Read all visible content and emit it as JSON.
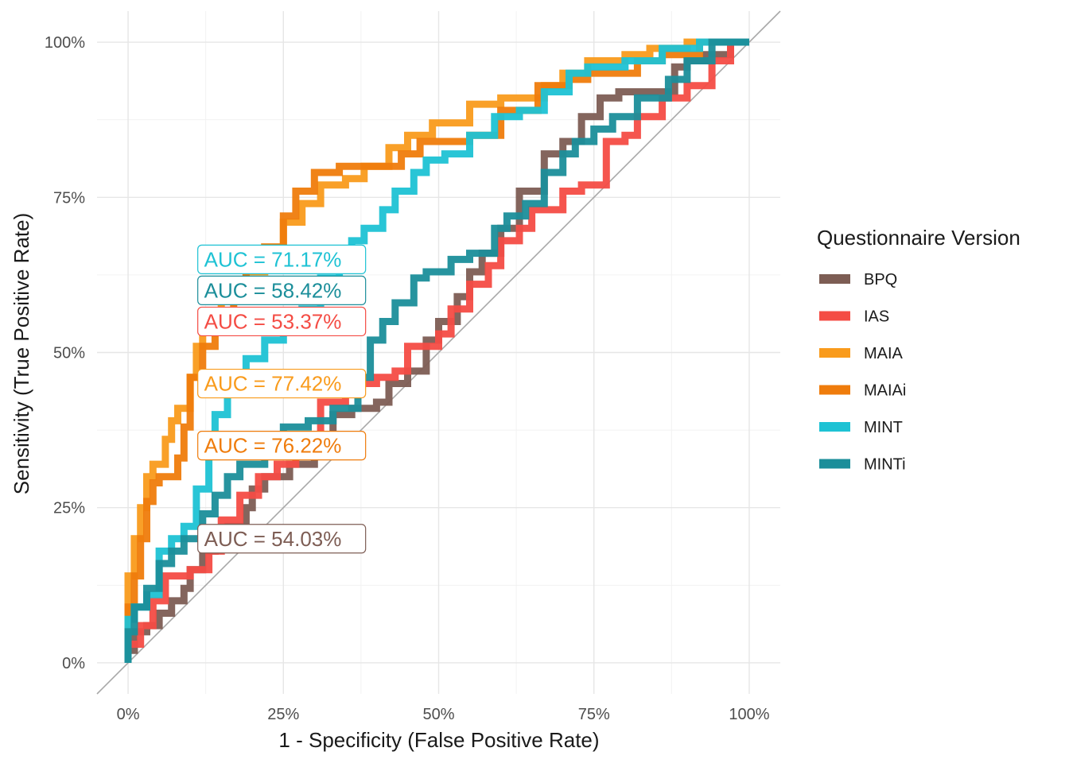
{
  "chart_data": {
    "type": "line",
    "title": "",
    "xlabel": "1 - Specificity (False Positive Rate)",
    "ylabel": "Sensitivity (True Positive Rate)",
    "xlim": [
      -0.05,
      1.05
    ],
    "ylim": [
      -0.05,
      1.05
    ],
    "x_ticks": [
      0,
      0.25,
      0.5,
      0.75,
      1
    ],
    "x_tick_labels": [
      "0%",
      "25%",
      "50%",
      "75%",
      "100%"
    ],
    "y_ticks": [
      0,
      0.25,
      0.5,
      0.75,
      1
    ],
    "y_tick_labels": [
      "0%",
      "25%",
      "50%",
      "75%",
      "100%"
    ],
    "grid": true,
    "reference_line": "diagonal",
    "legend": {
      "title": "Questionnaire Version",
      "position": "right"
    },
    "series": [
      {
        "name": "BPQ",
        "color": "#7d5d54",
        "auc_label": "AUC = 54.03%",
        "label_anchor": [
          0.125,
          0.2
        ],
        "points": [
          [
            0,
            0
          ],
          [
            0.01,
            0.02
          ],
          [
            0.03,
            0.05
          ],
          [
            0.05,
            0.06
          ],
          [
            0.07,
            0.08
          ],
          [
            0.09,
            0.1
          ],
          [
            0.1,
            0.12
          ],
          [
            0.12,
            0.15
          ],
          [
            0.14,
            0.18
          ],
          [
            0.16,
            0.2
          ],
          [
            0.19,
            0.22
          ],
          [
            0.2,
            0.25
          ],
          [
            0.22,
            0.28
          ],
          [
            0.26,
            0.3
          ],
          [
            0.3,
            0.32
          ],
          [
            0.33,
            0.36
          ],
          [
            0.36,
            0.4
          ],
          [
            0.4,
            0.41
          ],
          [
            0.42,
            0.42
          ],
          [
            0.45,
            0.45
          ],
          [
            0.48,
            0.47
          ],
          [
            0.5,
            0.52
          ],
          [
            0.53,
            0.55
          ],
          [
            0.55,
            0.59
          ],
          [
            0.57,
            0.63
          ],
          [
            0.6,
            0.66
          ],
          [
            0.63,
            0.7
          ],
          [
            0.67,
            0.76
          ],
          [
            0.7,
            0.82
          ],
          [
            0.71,
            0.84
          ],
          [
            0.73,
            0.84
          ],
          [
            0.76,
            0.88
          ],
          [
            0.79,
            0.91
          ],
          [
            0.88,
            0.92
          ],
          [
            0.9,
            0.96
          ],
          [
            0.93,
            0.97
          ],
          [
            0.97,
            0.98
          ],
          [
            1,
            1
          ]
        ]
      },
      {
        "name": "IAS",
        "color": "#f44c44",
        "auc_label": "AUC = 53.37%",
        "label_anchor": [
          0.125,
          0.55
        ],
        "points": [
          [
            0,
            0
          ],
          [
            0.02,
            0.03
          ],
          [
            0.04,
            0.06
          ],
          [
            0.06,
            0.1
          ],
          [
            0.1,
            0.14
          ],
          [
            0.13,
            0.15
          ],
          [
            0.15,
            0.18
          ],
          [
            0.18,
            0.23
          ],
          [
            0.21,
            0.27
          ],
          [
            0.24,
            0.3
          ],
          [
            0.27,
            0.32
          ],
          [
            0.31,
            0.36
          ],
          [
            0.35,
            0.42
          ],
          [
            0.4,
            0.45
          ],
          [
            0.43,
            0.46
          ],
          [
            0.45,
            0.47
          ],
          [
            0.5,
            0.51
          ],
          [
            0.52,
            0.53
          ],
          [
            0.55,
            0.57
          ],
          [
            0.58,
            0.61
          ],
          [
            0.6,
            0.64
          ],
          [
            0.63,
            0.68
          ],
          [
            0.65,
            0.7
          ],
          [
            0.67,
            0.73
          ],
          [
            0.7,
            0.73
          ],
          [
            0.73,
            0.76
          ],
          [
            0.77,
            0.77
          ],
          [
            0.8,
            0.84
          ],
          [
            0.82,
            0.85
          ],
          [
            0.86,
            0.88
          ],
          [
            0.9,
            0.91
          ],
          [
            0.94,
            0.93
          ],
          [
            0.97,
            0.97
          ],
          [
            1,
            1
          ]
        ]
      },
      {
        "name": "MAIA",
        "color": "#f99b1c",
        "auc_label": "AUC = 77.42%",
        "label_anchor": [
          0.125,
          0.45
        ],
        "points": [
          [
            0,
            0
          ],
          [
            0,
            0.1
          ],
          [
            0.01,
            0.14
          ],
          [
            0.02,
            0.2
          ],
          [
            0.03,
            0.25
          ],
          [
            0.04,
            0.3
          ],
          [
            0.06,
            0.32
          ],
          [
            0.07,
            0.36
          ],
          [
            0.08,
            0.39
          ],
          [
            0.1,
            0.41
          ],
          [
            0.11,
            0.46
          ],
          [
            0.12,
            0.51
          ],
          [
            0.15,
            0.55
          ],
          [
            0.19,
            0.6
          ],
          [
            0.22,
            0.63
          ],
          [
            0.25,
            0.67
          ],
          [
            0.28,
            0.71
          ],
          [
            0.31,
            0.74
          ],
          [
            0.35,
            0.77
          ],
          [
            0.38,
            0.78
          ],
          [
            0.42,
            0.8
          ],
          [
            0.45,
            0.83
          ],
          [
            0.49,
            0.85
          ],
          [
            0.55,
            0.87
          ],
          [
            0.6,
            0.9
          ],
          [
            0.67,
            0.91
          ],
          [
            0.7,
            0.93
          ],
          [
            0.74,
            0.95
          ],
          [
            0.8,
            0.97
          ],
          [
            0.84,
            0.98
          ],
          [
            0.9,
            0.99
          ],
          [
            1,
            1
          ]
        ]
      },
      {
        "name": "MAIAi",
        "color": "#ef7c0c",
        "auc_label": "AUC = 76.22%",
        "label_anchor": [
          0.125,
          0.35
        ],
        "points": [
          [
            0,
            0
          ],
          [
            0.01,
            0.09
          ],
          [
            0.02,
            0.14
          ],
          [
            0.03,
            0.2
          ],
          [
            0.04,
            0.26
          ],
          [
            0.05,
            0.29
          ],
          [
            0.08,
            0.3
          ],
          [
            0.09,
            0.33
          ],
          [
            0.1,
            0.38
          ],
          [
            0.12,
            0.46
          ],
          [
            0.14,
            0.51
          ],
          [
            0.17,
            0.56
          ],
          [
            0.19,
            0.6
          ],
          [
            0.22,
            0.64
          ],
          [
            0.25,
            0.67
          ],
          [
            0.27,
            0.72
          ],
          [
            0.3,
            0.76
          ],
          [
            0.34,
            0.79
          ],
          [
            0.37,
            0.8
          ],
          [
            0.44,
            0.8
          ],
          [
            0.47,
            0.82
          ],
          [
            0.5,
            0.84
          ],
          [
            0.55,
            0.84
          ],
          [
            0.6,
            0.85
          ],
          [
            0.66,
            0.89
          ],
          [
            0.71,
            0.93
          ],
          [
            0.74,
            0.94
          ],
          [
            0.82,
            0.95
          ],
          [
            0.86,
            0.97
          ],
          [
            0.92,
            0.98
          ],
          [
            1,
            1
          ]
        ]
      },
      {
        "name": "MINT",
        "color": "#1ec2d4",
        "auc_label": "AUC = 71.17%",
        "label_anchor": [
          0.125,
          0.65
        ],
        "points": [
          [
            0,
            0
          ],
          [
            0.01,
            0.07
          ],
          [
            0.03,
            0.09
          ],
          [
            0.05,
            0.11
          ],
          [
            0.07,
            0.18
          ],
          [
            0.09,
            0.2
          ],
          [
            0.11,
            0.22
          ],
          [
            0.13,
            0.28
          ],
          [
            0.14,
            0.35
          ],
          [
            0.16,
            0.4
          ],
          [
            0.19,
            0.44
          ],
          [
            0.22,
            0.49
          ],
          [
            0.25,
            0.52
          ],
          [
            0.28,
            0.54
          ],
          [
            0.31,
            0.57
          ],
          [
            0.34,
            0.62
          ],
          [
            0.36,
            0.64
          ],
          [
            0.38,
            0.68
          ],
          [
            0.41,
            0.7
          ],
          [
            0.43,
            0.73
          ],
          [
            0.46,
            0.76
          ],
          [
            0.48,
            0.79
          ],
          [
            0.51,
            0.81
          ],
          [
            0.55,
            0.82
          ],
          [
            0.59,
            0.85
          ],
          [
            0.63,
            0.88
          ],
          [
            0.67,
            0.89
          ],
          [
            0.71,
            0.92
          ],
          [
            0.74,
            0.95
          ],
          [
            0.8,
            0.96
          ],
          [
            0.86,
            0.97
          ],
          [
            0.92,
            0.99
          ],
          [
            1,
            1
          ]
        ]
      },
      {
        "name": "MINTi",
        "color": "#1b8e9a",
        "auc_label": "AUC = 58.42%",
        "label_anchor": [
          0.125,
          0.6
        ],
        "points": [
          [
            0,
            0
          ],
          [
            0.01,
            0.05
          ],
          [
            0.03,
            0.09
          ],
          [
            0.05,
            0.12
          ],
          [
            0.07,
            0.16
          ],
          [
            0.09,
            0.18
          ],
          [
            0.12,
            0.2
          ],
          [
            0.14,
            0.24
          ],
          [
            0.16,
            0.27
          ],
          [
            0.18,
            0.3
          ],
          [
            0.22,
            0.32
          ],
          [
            0.25,
            0.34
          ],
          [
            0.29,
            0.38
          ],
          [
            0.33,
            0.39
          ],
          [
            0.37,
            0.41
          ],
          [
            0.39,
            0.46
          ],
          [
            0.41,
            0.52
          ],
          [
            0.43,
            0.55
          ],
          [
            0.46,
            0.58
          ],
          [
            0.48,
            0.62
          ],
          [
            0.52,
            0.63
          ],
          [
            0.55,
            0.65
          ],
          [
            0.59,
            0.66
          ],
          [
            0.61,
            0.7
          ],
          [
            0.64,
            0.72
          ],
          [
            0.67,
            0.74
          ],
          [
            0.7,
            0.79
          ],
          [
            0.72,
            0.82
          ],
          [
            0.75,
            0.84
          ],
          [
            0.78,
            0.86
          ],
          [
            0.82,
            0.88
          ],
          [
            0.87,
            0.91
          ],
          [
            0.9,
            0.94
          ],
          [
            0.94,
            0.97
          ],
          [
            1,
            1
          ]
        ]
      }
    ]
  }
}
